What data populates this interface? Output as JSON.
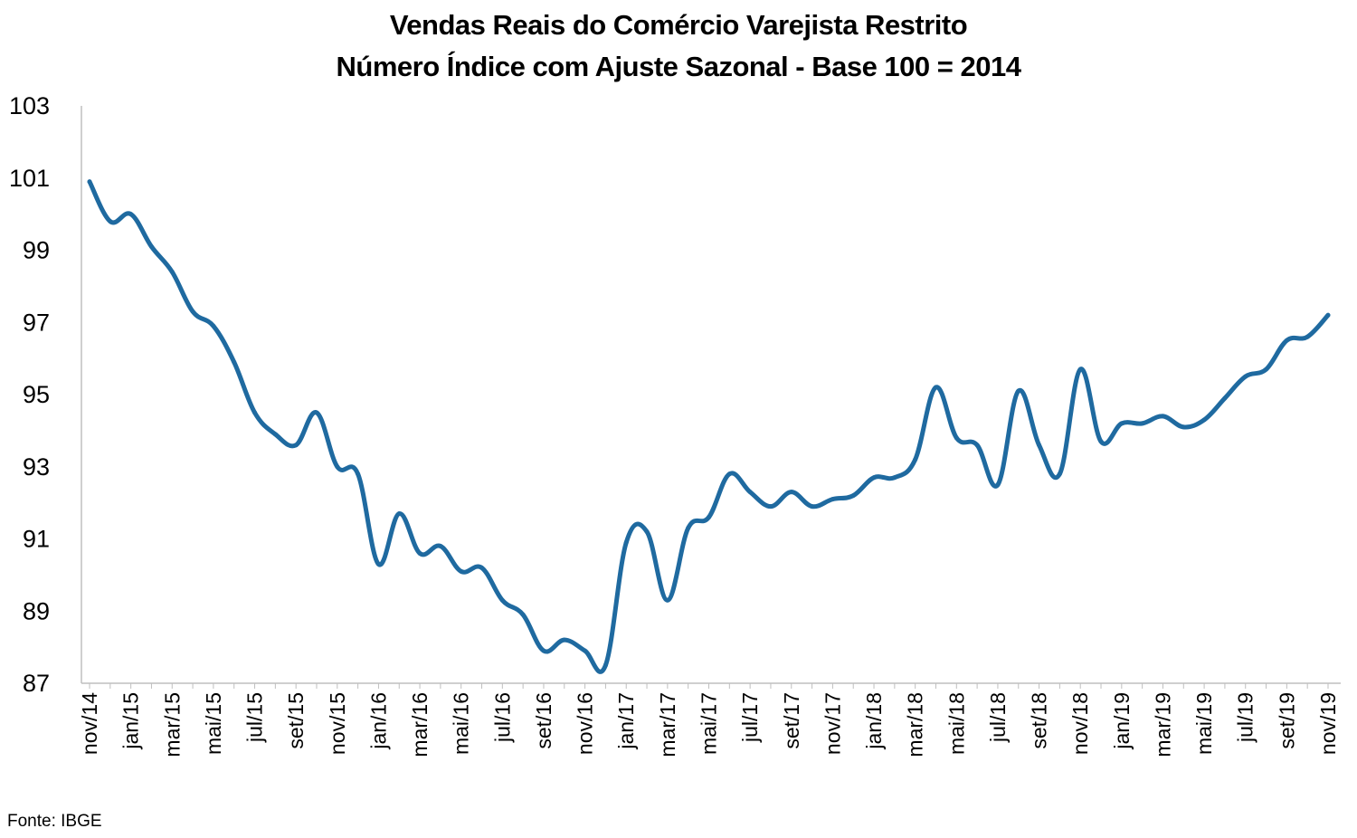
{
  "title": "Vendas Reais do Comércio Varejista Restrito",
  "subtitle": "Número Índice com Ajuste Sazonal - Base 100 = 2014",
  "source": "Fonte: IBGE",
  "colors": {
    "line": "#1f6aa0",
    "axis": "#bfbfbf"
  },
  "chart_data": {
    "type": "line",
    "title": "Vendas Reais do Comércio Varejista Restrito",
    "subtitle": "Número Índice com Ajuste Sazonal - Base 100 = 2014",
    "xlabel": "",
    "ylabel": "",
    "ylim": [
      87,
      103
    ],
    "yticks": [
      87,
      89,
      91,
      93,
      95,
      97,
      99,
      101,
      103
    ],
    "grid": false,
    "legend": "none",
    "xtick_labels": [
      "nov/14",
      "jan/15",
      "mar/15",
      "mai/15",
      "jul/15",
      "set/15",
      "nov/15",
      "jan/16",
      "mar/16",
      "mai/16",
      "jul/16",
      "set/16",
      "nov/16",
      "jan/17",
      "mar/17",
      "mai/17",
      "jul/17",
      "set/17",
      "nov/17",
      "jan/18",
      "mar/18",
      "mai/18",
      "jul/18",
      "set/18",
      "nov/18",
      "jan/19",
      "mar/19",
      "mai/19",
      "jul/19",
      "set/19",
      "nov/19"
    ],
    "categories": [
      "nov/14",
      "dez/14",
      "jan/15",
      "fev/15",
      "mar/15",
      "abr/15",
      "mai/15",
      "jun/15",
      "jul/15",
      "ago/15",
      "set/15",
      "out/15",
      "nov/15",
      "dez/15",
      "jan/16",
      "fev/16",
      "mar/16",
      "abr/16",
      "mai/16",
      "jun/16",
      "jul/16",
      "ago/16",
      "set/16",
      "out/16",
      "nov/16",
      "dez/16",
      "jan/17",
      "fev/17",
      "mar/17",
      "abr/17",
      "mai/17",
      "jun/17",
      "jul/17",
      "ago/17",
      "set/17",
      "out/17",
      "nov/17",
      "dez/17",
      "jan/18",
      "fev/18",
      "mar/18",
      "abr/18",
      "mai/18",
      "jun/18",
      "jul/18",
      "ago/18",
      "set/18",
      "out/18",
      "nov/18",
      "dez/18",
      "jan/19",
      "fev/19",
      "mar/19",
      "abr/19",
      "mai/19",
      "jun/19",
      "jul/19",
      "ago/19",
      "set/19",
      "out/19",
      "nov/19"
    ],
    "series": [
      {
        "values": [
          100.9,
          99.8,
          100.0,
          99.1,
          98.4,
          97.3,
          96.9,
          95.9,
          94.5,
          93.9,
          93.6,
          94.5,
          93.0,
          92.8,
          90.3,
          91.7,
          90.6,
          90.8,
          90.1,
          90.2,
          89.3,
          88.9,
          87.9,
          88.2,
          87.9,
          87.5,
          90.9,
          91.2,
          89.3,
          91.3,
          91.6,
          92.8,
          92.3,
          91.9,
          92.3,
          91.9,
          92.1,
          92.2,
          92.7,
          92.7,
          93.2,
          95.2,
          93.8,
          93.6,
          92.5,
          95.1,
          93.6,
          92.8,
          95.7,
          93.7,
          94.2,
          94.2,
          94.4,
          94.1,
          94.3,
          94.9,
          95.5,
          95.7,
          96.5,
          96.6,
          97.2
        ]
      }
    ]
  }
}
